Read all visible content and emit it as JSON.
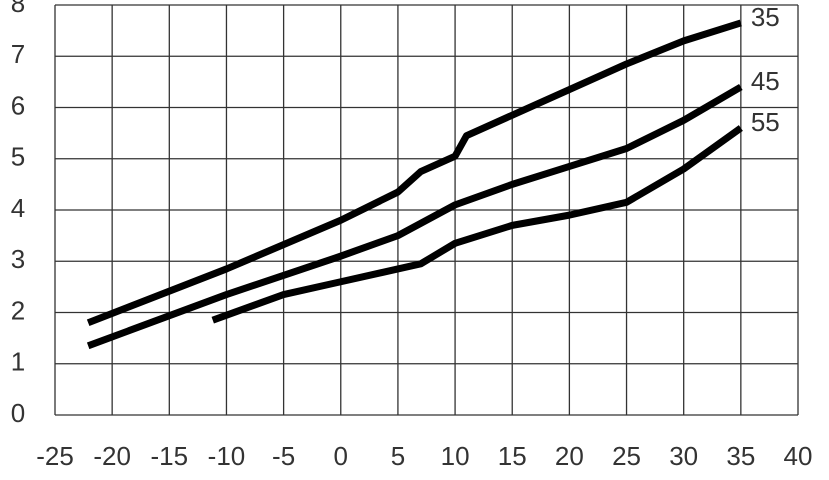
{
  "chart_data": {
    "type": "line",
    "xlim": [
      -25,
      40
    ],
    "xticks": [
      -25,
      -20,
      -15,
      -10,
      -5,
      0,
      5,
      10,
      15,
      20,
      25,
      30,
      35,
      40
    ],
    "ylim": [
      0,
      8
    ],
    "yticks": [
      0,
      1,
      2,
      3,
      4,
      5,
      6,
      7,
      8
    ],
    "grid": true,
    "series": [
      {
        "name": "35",
        "color": "#000000",
        "x": [
          -22.1,
          -10,
          0,
          5,
          7,
          10,
          11,
          15,
          20,
          25,
          30,
          35
        ],
        "values": [
          1.8,
          2.85,
          3.8,
          4.35,
          4.75,
          5.05,
          5.45,
          5.85,
          6.35,
          6.85,
          7.3,
          7.65
        ]
      },
      {
        "name": "45",
        "color": "#000000",
        "x": [
          -22.1,
          -10,
          0,
          5,
          10,
          15,
          20,
          25,
          30,
          35
        ],
        "values": [
          1.35,
          2.35,
          3.1,
          3.5,
          4.1,
          4.5,
          4.85,
          5.2,
          5.75,
          6.4
        ]
      },
      {
        "name": "55",
        "color": "#000000",
        "x": [
          -11.2,
          -5,
          0,
          5,
          7,
          10,
          15,
          20,
          25,
          30,
          35
        ],
        "values": [
          1.85,
          2.35,
          2.6,
          2.85,
          2.95,
          3.35,
          3.7,
          3.9,
          4.15,
          4.8,
          5.6
        ]
      }
    ]
  }
}
